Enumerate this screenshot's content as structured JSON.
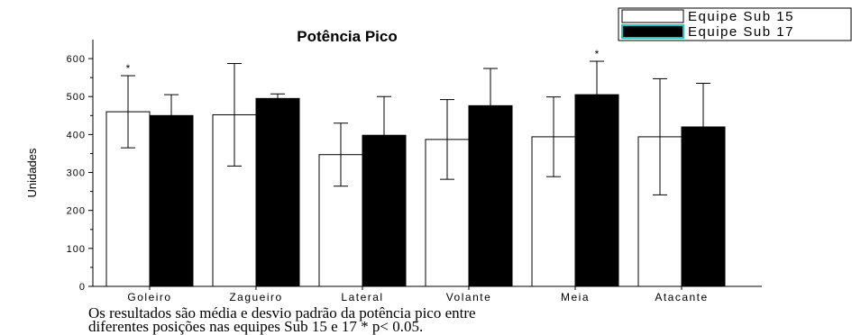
{
  "chart_data": {
    "type": "bar",
    "title": "Potência Pico",
    "ylabel": "Unidades",
    "xlabel": "",
    "ylim": [
      0,
      650
    ],
    "yticks": [
      0,
      100,
      200,
      300,
      400,
      500,
      600
    ],
    "categories": [
      "Goleiro",
      "Zagueiro",
      "Lateral",
      "Volante",
      "Meia",
      "Atacante"
    ],
    "series": [
      {
        "name": "Equipe Sub 15",
        "color": "#ffffff",
        "values": [
          460,
          452,
          347,
          387,
          394,
          394
        ],
        "error": [
          95,
          135,
          83,
          105,
          105,
          153
        ]
      },
      {
        "name": "Equipe Sub 17",
        "color": "#000000",
        "values": [
          450,
          495,
          398,
          476,
          505,
          420
        ],
        "error": [
          55,
          12,
          102,
          98,
          88,
          115
        ]
      }
    ],
    "significance": [
      {
        "category": "Goleiro",
        "series": "Equipe Sub 15",
        "label": "*"
      },
      {
        "category": "Meia",
        "series": "Equipe Sub 17",
        "label": "*"
      }
    ],
    "legend": "top-right",
    "grid": false
  },
  "caption": {
    "line1": "Os resultados são média e desvio padrão da potência pico entre",
    "line2": "diferentes posições nas equipes Sub 15 e 17  * p< 0.05."
  }
}
